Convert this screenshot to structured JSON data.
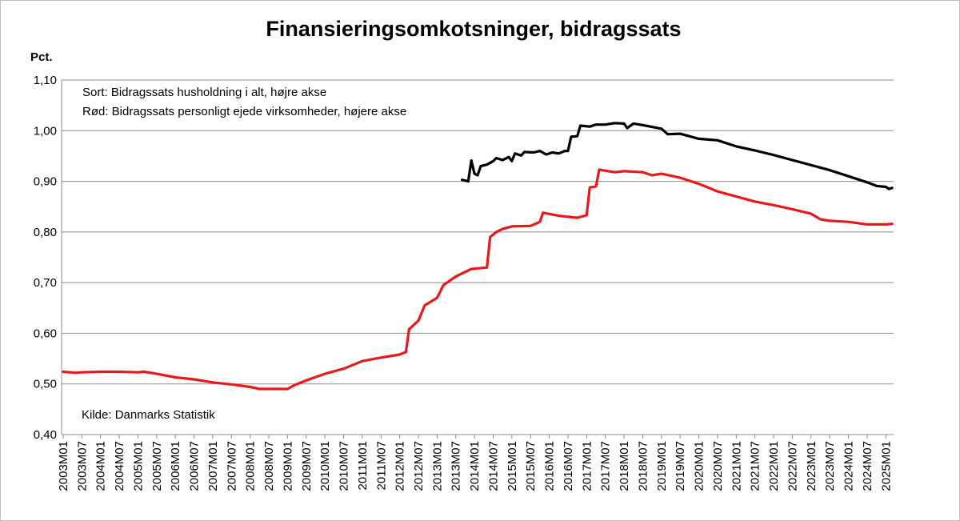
{
  "chart_data": {
    "type": "line",
    "title": "Finansieringsomkotsninger, bidragssats",
    "ylabel": "Pct.",
    "xlabel": "",
    "ylim": [
      0.4,
      1.1
    ],
    "yticks": [
      "0,40",
      "0,50",
      "0,60",
      "0,70",
      "0,80",
      "0,90",
      "1,00",
      "1,10"
    ],
    "grid": true,
    "xticks": [
      "2003M01",
      "2003M07",
      "2004M01",
      "2004M07",
      "2005M01",
      "2005M07",
      "2006M01",
      "2006M07",
      "2007M01",
      "2007M07",
      "2008M01",
      "2008M07",
      "2009M01",
      "2009M07",
      "2010M01",
      "2010M07",
      "2011M01",
      "2011M07",
      "2012M01",
      "2012M07",
      "2013M01",
      "2013M07",
      "2014M01",
      "2014M07",
      "2015M01",
      "2015M07",
      "2016M01",
      "2016M07",
      "2017M01",
      "2017M07",
      "2018M01",
      "2018M07",
      "2019M01",
      "2019M07",
      "2020M01",
      "2020M07",
      "2021M01",
      "2021M07",
      "2022M01",
      "2022M07",
      "2023M01",
      "2023M07",
      "2024M01",
      "2024M07",
      "2025M01"
    ],
    "annotations": [
      "Sort: Bidragssats husholdning i alt, højre akse",
      "Rød: Bidragssats personligt ejede virksomheder, højere akse"
    ],
    "source": "Kilde: Danmarks Statistik",
    "series": [
      {
        "color": "#000000",
        "points": [
          [
            "2013M09",
            0.903
          ],
          [
            "2013M11",
            0.9
          ],
          [
            "2013M12",
            0.941
          ],
          [
            "2014M01",
            0.915
          ],
          [
            "2014M02",
            0.912
          ],
          [
            "2014M03",
            0.93
          ],
          [
            "2014M05",
            0.933
          ],
          [
            "2014M07",
            0.94
          ],
          [
            "2014M08",
            0.946
          ],
          [
            "2014M10",
            0.942
          ],
          [
            "2014M12",
            0.948
          ],
          [
            "2015M01",
            0.94
          ],
          [
            "2015M02",
            0.955
          ],
          [
            "2015M04",
            0.951
          ],
          [
            "2015M05",
            0.958
          ],
          [
            "2015M08",
            0.957
          ],
          [
            "2015M10",
            0.96
          ],
          [
            "2015M12",
            0.953
          ],
          [
            "2016M02",
            0.957
          ],
          [
            "2016M04",
            0.955
          ],
          [
            "2016M06",
            0.96
          ],
          [
            "2016M07",
            0.96
          ],
          [
            "2016M08",
            0.988
          ],
          [
            "2016M10",
            0.989
          ],
          [
            "2016M11",
            1.01
          ],
          [
            "2017M02",
            1.008
          ],
          [
            "2017M04",
            1.012
          ],
          [
            "2017M07",
            1.012
          ],
          [
            "2017M10",
            1.015
          ],
          [
            "2018M01",
            1.014
          ],
          [
            "2018M02",
            1.005
          ],
          [
            "2018M04",
            1.014
          ],
          [
            "2018M07",
            1.011
          ],
          [
            "2019M01",
            1.004
          ],
          [
            "2019M03",
            0.993
          ],
          [
            "2019M07",
            0.994
          ],
          [
            "2020M01",
            0.984
          ],
          [
            "2020M07",
            0.981
          ],
          [
            "2021M01",
            0.969
          ],
          [
            "2021M07",
            0.961
          ],
          [
            "2022M01",
            0.952
          ],
          [
            "2022M07",
            0.942
          ],
          [
            "2023M01",
            0.932
          ],
          [
            "2023M07",
            0.922
          ],
          [
            "2024M01",
            0.91
          ],
          [
            "2024M07",
            0.898
          ],
          [
            "2024M10",
            0.891
          ],
          [
            "2025M01",
            0.889
          ],
          [
            "2025M02",
            0.885
          ],
          [
            "2025M03",
            0.887
          ]
        ]
      },
      {
        "color": "#e8191c",
        "points": [
          [
            "2003M01",
            0.524
          ],
          [
            "2003M05",
            0.522
          ],
          [
            "2003M07",
            0.523
          ],
          [
            "2004M01",
            0.524
          ],
          [
            "2004M07",
            0.524
          ],
          [
            "2005M01",
            0.523
          ],
          [
            "2005M03",
            0.524
          ],
          [
            "2005M07",
            0.52
          ],
          [
            "2006M01",
            0.513
          ],
          [
            "2006M07",
            0.509
          ],
          [
            "2007M01",
            0.503
          ],
          [
            "2007M07",
            0.499
          ],
          [
            "2008M01",
            0.494
          ],
          [
            "2008M04",
            0.49
          ],
          [
            "2008M07",
            0.49
          ],
          [
            "2009M01",
            0.49
          ],
          [
            "2009M03",
            0.497
          ],
          [
            "2009M07",
            0.507
          ],
          [
            "2010M01",
            0.52
          ],
          [
            "2010M07",
            0.53
          ],
          [
            "2011M01",
            0.545
          ],
          [
            "2011M07",
            0.552
          ],
          [
            "2012M01",
            0.558
          ],
          [
            "2012M03",
            0.563
          ],
          [
            "2012M04",
            0.608
          ],
          [
            "2012M07",
            0.625
          ],
          [
            "2012M09",
            0.655
          ],
          [
            "2013M01",
            0.67
          ],
          [
            "2013M03",
            0.695
          ],
          [
            "2013M07",
            0.712
          ],
          [
            "2013M12",
            0.727
          ],
          [
            "2014M05",
            0.73
          ],
          [
            "2014M06",
            0.79
          ],
          [
            "2014M08",
            0.8
          ],
          [
            "2014M10",
            0.806
          ],
          [
            "2015M01",
            0.811
          ],
          [
            "2015M07",
            0.812
          ],
          [
            "2015M10",
            0.82
          ],
          [
            "2015M11",
            0.838
          ],
          [
            "2016M04",
            0.832
          ],
          [
            "2016M10",
            0.828
          ],
          [
            "2017M01",
            0.833
          ],
          [
            "2017M02",
            0.888
          ],
          [
            "2017M04",
            0.89
          ],
          [
            "2017M05",
            0.923
          ],
          [
            "2017M10",
            0.918
          ],
          [
            "2018M01",
            0.92
          ],
          [
            "2018M07",
            0.918
          ],
          [
            "2018M10",
            0.912
          ],
          [
            "2019M01",
            0.915
          ],
          [
            "2019M07",
            0.907
          ],
          [
            "2020M01",
            0.895
          ],
          [
            "2020M07",
            0.88
          ],
          [
            "2021M01",
            0.87
          ],
          [
            "2021M07",
            0.86
          ],
          [
            "2022M01",
            0.853
          ],
          [
            "2022M07",
            0.845
          ],
          [
            "2023M01",
            0.836
          ],
          [
            "2023M04",
            0.825
          ],
          [
            "2023M07",
            0.822
          ],
          [
            "2024M01",
            0.82
          ],
          [
            "2024M07",
            0.815
          ],
          [
            "2025M01",
            0.815
          ],
          [
            "2025M03",
            0.816
          ]
        ]
      }
    ]
  }
}
